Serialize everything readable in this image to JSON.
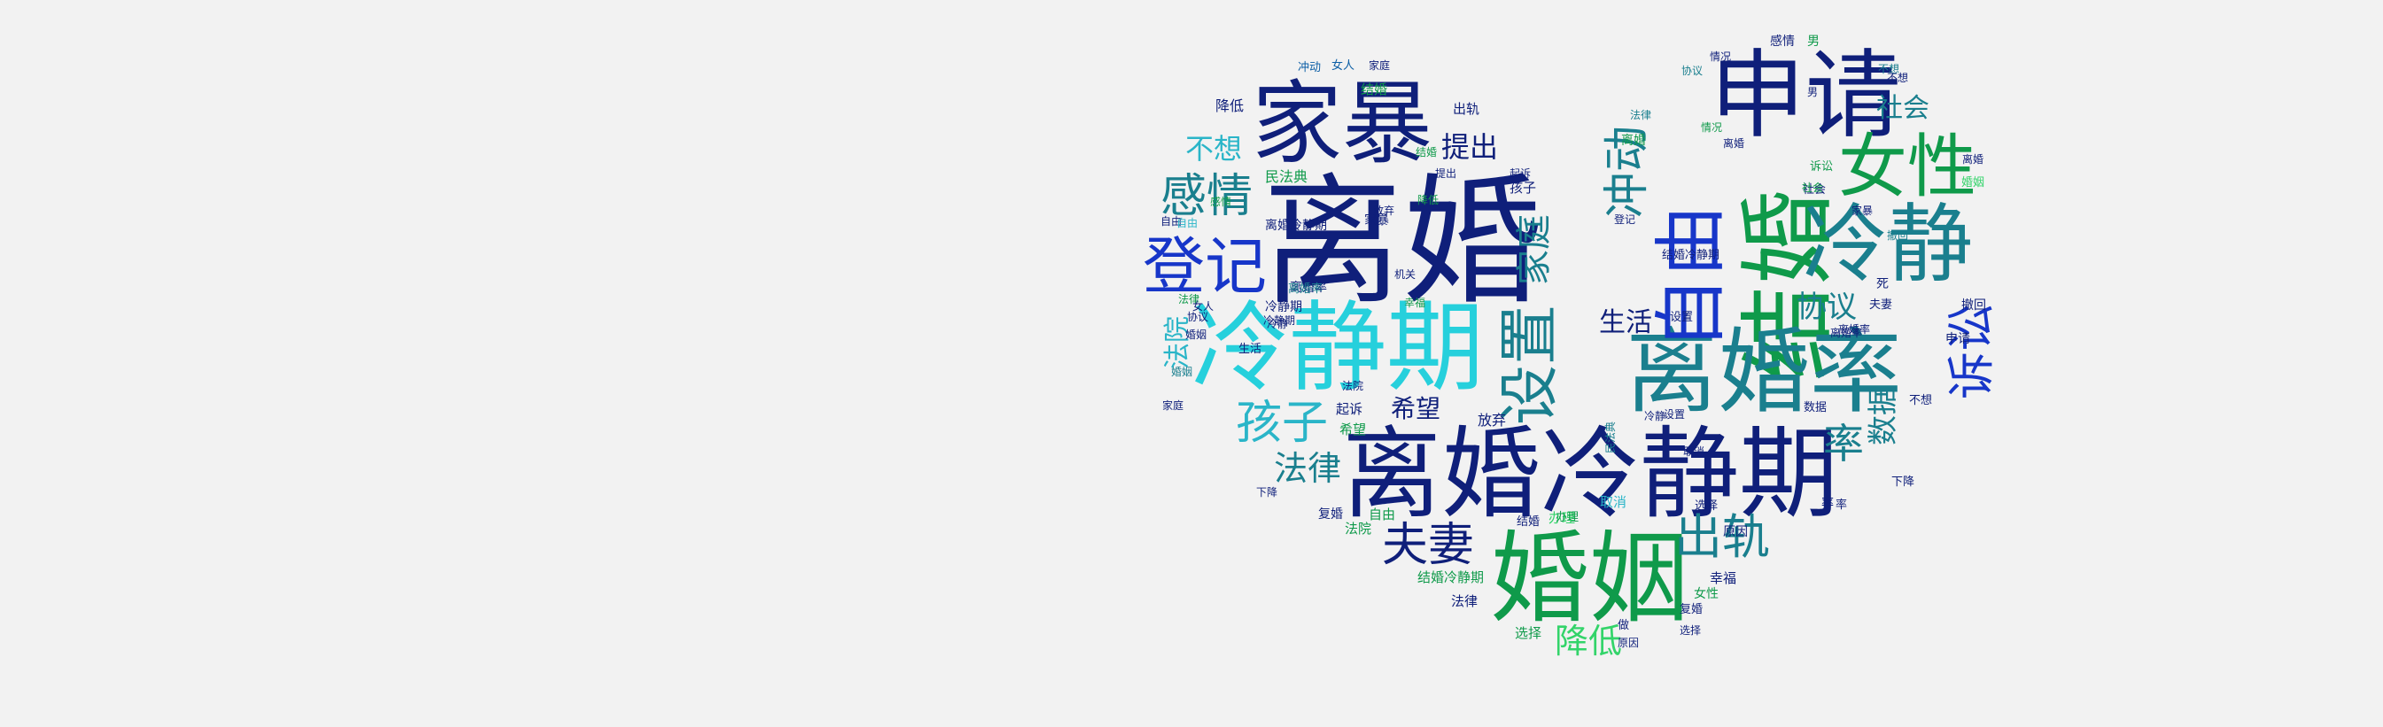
{
  "palette": {
    "navy": "#0f1f7a",
    "blue": "#1736c9",
    "teal": "#1a7f8e",
    "cyan": "#2ab5c8",
    "aqua": "#26d0dc",
    "green": "#0f9a4a",
    "lime": "#33d46a",
    "mid": "#0d5fa6"
  },
  "words": [
    {
      "t": "离婚",
      "color": "navy"
    },
    {
      "t": "离婚冷静期",
      "color": "navy"
    },
    {
      "t": "冷静期",
      "color": "aqua"
    },
    {
      "t": "婚姻",
      "color": "green"
    },
    {
      "t": "家暴",
      "color": "navy"
    },
    {
      "t": "申请",
      "color": "navy"
    },
    {
      "t": "结婚",
      "color": "green"
    },
    {
      "t": "离婚率",
      "color": "teal"
    },
    {
      "t": "冷静",
      "color": "teal"
    },
    {
      "t": "登记",
      "color": "blue"
    },
    {
      "t": "女性",
      "color": "green"
    },
    {
      "t": "自由",
      "color": "blue"
    },
    {
      "t": "设置",
      "color": "teal"
    },
    {
      "t": "感情",
      "color": "teal"
    },
    {
      "t": "孩子",
      "color": "cyan"
    },
    {
      "t": "出轨",
      "color": "teal"
    },
    {
      "t": "夫妻",
      "color": "navy"
    },
    {
      "t": "诉讼",
      "color": "blue"
    },
    {
      "t": "冲动",
      "color": "teal"
    },
    {
      "t": "法律",
      "color": "teal"
    },
    {
      "t": "降低",
      "color": "lime"
    },
    {
      "t": "家庭",
      "color": "teal"
    },
    {
      "t": "提出",
      "color": "navy"
    },
    {
      "t": "不想",
      "color": "cyan"
    },
    {
      "t": "协议",
      "color": "teal"
    },
    {
      "t": "数据",
      "color": "teal"
    },
    {
      "t": "率",
      "color": "teal"
    },
    {
      "t": "生活",
      "color": "navy"
    },
    {
      "t": "希望",
      "color": "navy"
    },
    {
      "t": "法院",
      "color": "cyan"
    },
    {
      "t": "社会",
      "color": "teal"
    },
    {
      "t": "出轨",
      "color": "navy"
    },
    {
      "t": "降低",
      "color": "navy"
    },
    {
      "t": "民法典",
      "color": "green"
    },
    {
      "t": "离婚冷静期",
      "color": "navy"
    },
    {
      "t": "离婚率",
      "color": "navy"
    },
    {
      "t": "冷静期",
      "color": "navy"
    },
    {
      "t": "放弃",
      "color": "navy"
    },
    {
      "t": "孩子",
      "color": "navy"
    },
    {
      "t": "家暴",
      "color": "navy"
    },
    {
      "t": "起诉",
      "color": "navy"
    },
    {
      "t": "希望",
      "color": "green"
    },
    {
      "t": "法院",
      "color": "green"
    },
    {
      "t": "办理",
      "color": "lime"
    },
    {
      "t": "复婚",
      "color": "navy"
    },
    {
      "t": "自由",
      "color": "green"
    },
    {
      "t": "结婚冷静期",
      "color": "green"
    },
    {
      "t": "法律",
      "color": "navy"
    },
    {
      "t": "选择",
      "color": "green"
    },
    {
      "t": "幸福",
      "color": "navy"
    },
    {
      "t": "原因",
      "color": "navy"
    },
    {
      "t": "取消",
      "color": "cyan"
    },
    {
      "t": "复婚",
      "color": "navy"
    },
    {
      "t": "女性",
      "color": "green"
    },
    {
      "t": "感情",
      "color": "navy"
    },
    {
      "t": "男",
      "color": "green"
    },
    {
      "t": "冲动",
      "color": "mid"
    },
    {
      "t": "女人",
      "color": "mid"
    },
    {
      "t": "家庭",
      "color": "navy"
    },
    {
      "t": "结婚",
      "color": "green"
    },
    {
      "t": "情况",
      "color": "navy"
    },
    {
      "t": "不想",
      "color": "teal"
    },
    {
      "t": "协议",
      "color": "teal"
    },
    {
      "t": "法律",
      "color": "teal"
    },
    {
      "t": "情况",
      "color": "green"
    },
    {
      "t": "离婚",
      "color": "green"
    },
    {
      "t": "社会",
      "color": "navy"
    },
    {
      "t": "夫妻",
      "color": "navy"
    },
    {
      "t": "撤回",
      "color": "navy"
    },
    {
      "t": "申请",
      "color": "navy"
    },
    {
      "t": "不想",
      "color": "navy"
    },
    {
      "t": "下降",
      "color": "navy"
    },
    {
      "t": "率",
      "color": "navy"
    },
    {
      "t": "婚姻",
      "color": "lime"
    },
    {
      "t": "离婚",
      "color": "navy"
    },
    {
      "t": "诉讼",
      "color": "green"
    },
    {
      "t": "家暴",
      "color": "navy"
    },
    {
      "t": "死",
      "color": "navy"
    },
    {
      "t": "离婚率",
      "color": "navy"
    },
    {
      "t": "设置",
      "color": "navy"
    },
    {
      "t": "数据",
      "color": "navy"
    },
    {
      "t": "冷静",
      "color": "navy"
    },
    {
      "t": "选择",
      "color": "navy"
    },
    {
      "t": "结婚",
      "color": "navy"
    },
    {
      "t": "办理",
      "color": "green"
    },
    {
      "t": "做",
      "color": "navy"
    },
    {
      "t": "原因",
      "color": "navy"
    },
    {
      "t": "自由",
      "color": "navy"
    },
    {
      "t": "婚姻",
      "color": "navy"
    },
    {
      "t": "冷静期",
      "color": "navy"
    },
    {
      "t": "离婚率",
      "color": "teal"
    },
    {
      "t": "婚姻",
      "color": "teal"
    },
    {
      "t": "下降",
      "color": "navy"
    },
    {
      "t": "法院",
      "color": "navy"
    },
    {
      "t": "自由",
      "color": "cyan"
    },
    {
      "t": "法律",
      "color": "green"
    },
    {
      "t": "生活",
      "color": "navy"
    },
    {
      "t": "放弃",
      "color": "navy"
    },
    {
      "t": "冷静",
      "color": "navy"
    },
    {
      "t": "提出",
      "color": "navy"
    },
    {
      "t": "降低",
      "color": "green"
    },
    {
      "t": "起诉",
      "color": "navy"
    },
    {
      "t": "机关",
      "color": "navy"
    },
    {
      "t": "感情",
      "color": "green"
    },
    {
      "t": "结婚冷静期",
      "color": "navy"
    },
    {
      "t": "民法典",
      "color": "teal"
    },
    {
      "t": "登记",
      "color": "navy"
    },
    {
      "t": "离婚率",
      "color": "navy"
    },
    {
      "t": "女人",
      "color": "navy"
    },
    {
      "t": "协议",
      "color": "navy"
    },
    {
      "t": "家庭",
      "color": "navy"
    },
    {
      "t": "结婚",
      "color": "green"
    },
    {
      "t": "幸福",
      "color": "green"
    },
    {
      "t": "设置",
      "color": "navy"
    },
    {
      "t": "取消",
      "color": "navy"
    },
    {
      "t": "社会",
      "color": "green"
    },
    {
      "t": "离婚",
      "color": "navy"
    },
    {
      "t": "男",
      "color": "navy"
    },
    {
      "t": "撤回",
      "color": "teal"
    },
    {
      "t": "不想",
      "color": "navy"
    },
    {
      "t": "选择",
      "color": "navy"
    },
    {
      "t": "率",
      "color": "navy"
    }
  ]
}
